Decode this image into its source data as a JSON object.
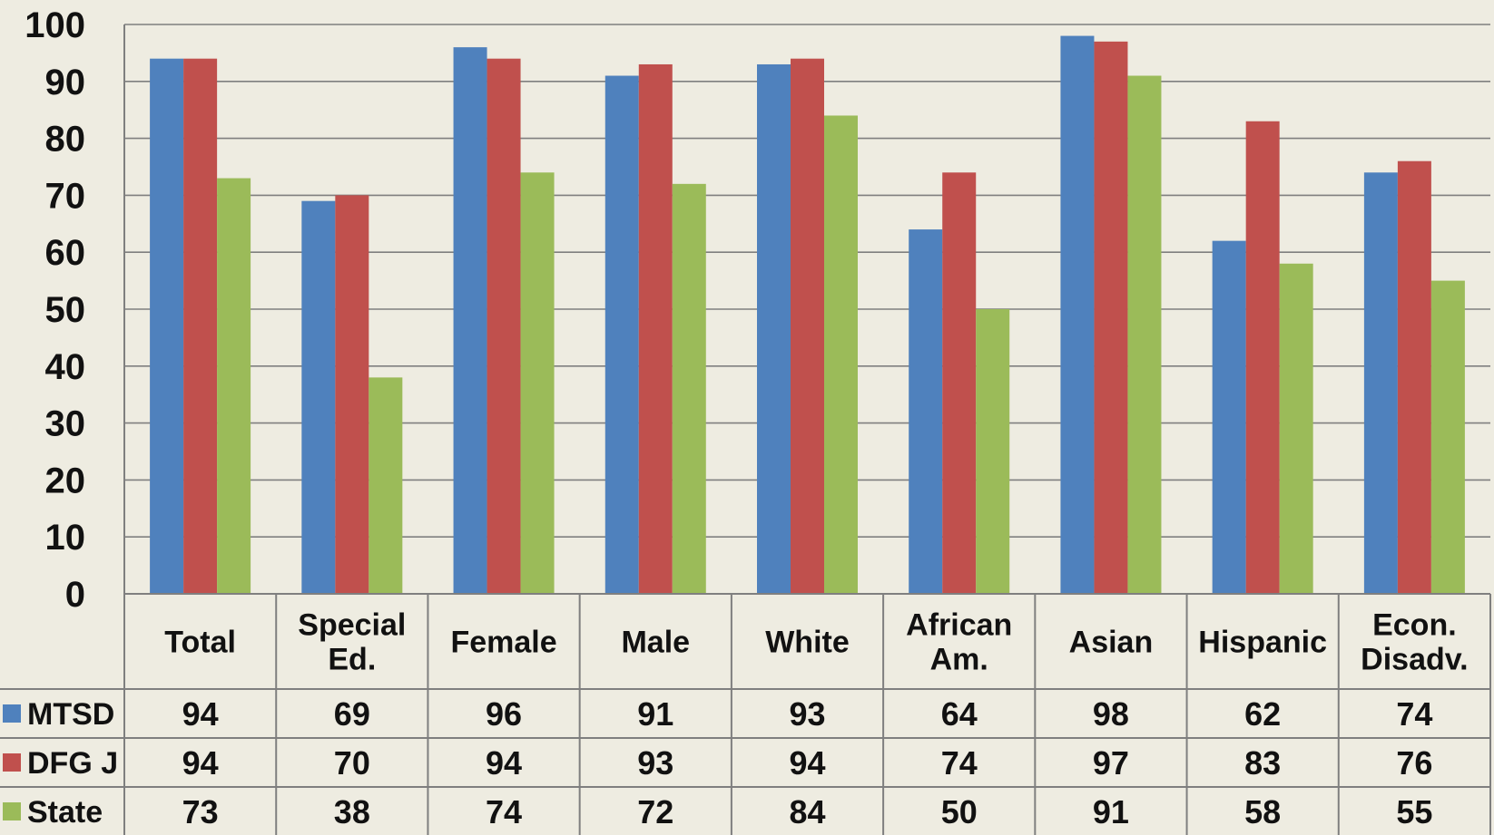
{
  "chart_data": {
    "type": "bar",
    "ylim": [
      0,
      100
    ],
    "yticks": [
      0,
      10,
      20,
      30,
      40,
      50,
      60,
      70,
      80,
      90,
      100
    ],
    "grid": true,
    "legend": "data-table-left",
    "categories": [
      [
        "Total"
      ],
      [
        "Special",
        "Ed."
      ],
      [
        "Female"
      ],
      [
        "Male"
      ],
      [
        "White"
      ],
      [
        "African",
        "Am."
      ],
      [
        "Asian"
      ],
      [
        "Hispanic"
      ],
      [
        "Econ.",
        "Disadv."
      ]
    ],
    "series": [
      {
        "name": "MTSD",
        "color": "#4F81BD",
        "values": [
          94,
          69,
          96,
          91,
          93,
          64,
          98,
          62,
          74
        ]
      },
      {
        "name": "DFG J",
        "color": "#C0504D",
        "values": [
          94,
          70,
          94,
          93,
          94,
          74,
          97,
          83,
          76
        ]
      },
      {
        "name": "State",
        "color": "#9BBB59",
        "values": [
          73,
          38,
          74,
          72,
          84,
          50,
          91,
          58,
          55
        ]
      }
    ]
  },
  "colors": {
    "background": "#EEECE1",
    "grid": "#7F7F7F",
    "table_border": "#7F7F7F"
  }
}
